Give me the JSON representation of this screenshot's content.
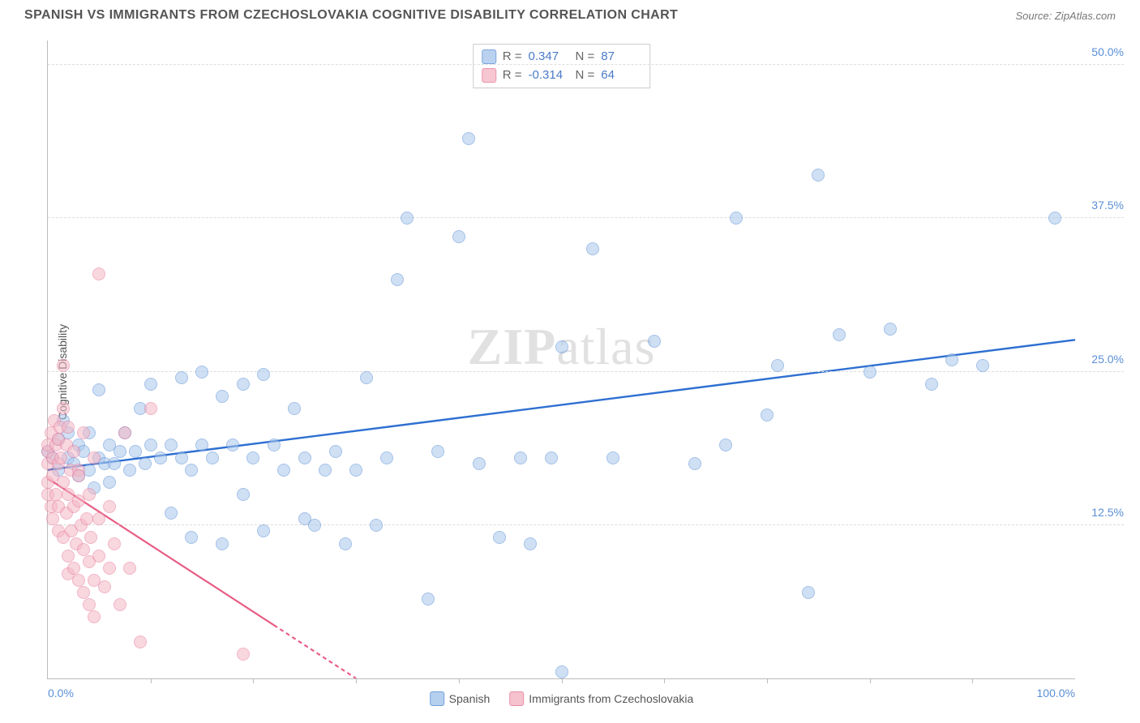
{
  "header": {
    "title": "SPANISH VS IMMIGRANTS FROM CZECHOSLOVAKIA COGNITIVE DISABILITY CORRELATION CHART",
    "source": "Source: ZipAtlas.com"
  },
  "chart": {
    "type": "scatter",
    "ylabel": "Cognitive Disability",
    "watermark_bold": "ZIP",
    "watermark_light": "atlas",
    "background_color": "#ffffff",
    "grid_color": "#dddddd",
    "axis_color": "#bbbbbb",
    "label_color": "#5b8fd6",
    "xlim": [
      0,
      100
    ],
    "ylim": [
      0,
      52
    ],
    "yticks": [
      {
        "v": 12.5,
        "label": "12.5%"
      },
      {
        "v": 25.0,
        "label": "25.0%"
      },
      {
        "v": 37.5,
        "label": "37.5%"
      },
      {
        "v": 50.0,
        "label": "50.0%"
      }
    ],
    "xticks_minor": [
      10,
      20,
      30,
      40,
      50,
      60,
      70,
      80,
      90
    ],
    "xtick_labels": [
      {
        "v": 0,
        "label": "0.0%"
      },
      {
        "v": 100,
        "label": "100.0%"
      }
    ],
    "marker_radius": 8,
    "marker_border_width": 1.2,
    "series": [
      {
        "name": "Spanish",
        "fill": "#a9c7ec",
        "fill_opacity": 0.55,
        "stroke": "#5b8fd6",
        "trend_color": "#2e6fd1",
        "trend_width": 2.4,
        "trend": {
          "x1": 0,
          "y1": 17.0,
          "x2": 100,
          "y2": 27.6,
          "dash_after_x": null
        },
        "stats": {
          "R": "0.347",
          "N": "87"
        },
        "points": [
          [
            0,
            18.5
          ],
          [
            0.5,
            18.0
          ],
          [
            1,
            19.5
          ],
          [
            1,
            17.0
          ],
          [
            1.5,
            21.0
          ],
          [
            2,
            18.0
          ],
          [
            2,
            20.0
          ],
          [
            2.5,
            17.5
          ],
          [
            3,
            19.0
          ],
          [
            3,
            16.5
          ],
          [
            3.5,
            18.5
          ],
          [
            4,
            20.0
          ],
          [
            4,
            17.0
          ],
          [
            4.5,
            15.5
          ],
          [
            5,
            18.0
          ],
          [
            5,
            23.5
          ],
          [
            5.5,
            17.5
          ],
          [
            6,
            19.0
          ],
          [
            6,
            16.0
          ],
          [
            6.5,
            17.5
          ],
          [
            7,
            18.5
          ],
          [
            7.5,
            20.0
          ],
          [
            8,
            17.0
          ],
          [
            8.5,
            18.5
          ],
          [
            9,
            22.0
          ],
          [
            9.5,
            17.5
          ],
          [
            10,
            19.0
          ],
          [
            10,
            24.0
          ],
          [
            11,
            18.0
          ],
          [
            12,
            19.0
          ],
          [
            12,
            13.5
          ],
          [
            13,
            18.0
          ],
          [
            13,
            24.5
          ],
          [
            14,
            17.0
          ],
          [
            14,
            11.5
          ],
          [
            15,
            25.0
          ],
          [
            15,
            19.0
          ],
          [
            16,
            18.0
          ],
          [
            17,
            23.0
          ],
          [
            17,
            11.0
          ],
          [
            18,
            19.0
          ],
          [
            19,
            24.0
          ],
          [
            19,
            15.0
          ],
          [
            20,
            18.0
          ],
          [
            21,
            24.8
          ],
          [
            21,
            12.0
          ],
          [
            22,
            19.0
          ],
          [
            23,
            17.0
          ],
          [
            24,
            22.0
          ],
          [
            25,
            18.0
          ],
          [
            25,
            13.0
          ],
          [
            26,
            12.5
          ],
          [
            27,
            17.0
          ],
          [
            28,
            18.5
          ],
          [
            29,
            11.0
          ],
          [
            30,
            17.0
          ],
          [
            31,
            24.5
          ],
          [
            32,
            12.5
          ],
          [
            33,
            18.0
          ],
          [
            34,
            32.5
          ],
          [
            35,
            37.5
          ],
          [
            37,
            6.5
          ],
          [
            38,
            18.5
          ],
          [
            40,
            36.0
          ],
          [
            41,
            44.0
          ],
          [
            42,
            17.5
          ],
          [
            44,
            11.5
          ],
          [
            46,
            18.0
          ],
          [
            47,
            11.0
          ],
          [
            49,
            18.0
          ],
          [
            50,
            27.0
          ],
          [
            50,
            0.5
          ],
          [
            53,
            35.0
          ],
          [
            55,
            18.0
          ],
          [
            59,
            27.5
          ],
          [
            63,
            17.5
          ],
          [
            66,
            19.0
          ],
          [
            67,
            37.5
          ],
          [
            70,
            21.5
          ],
          [
            71,
            25.5
          ],
          [
            74,
            7.0
          ],
          [
            75,
            41.0
          ],
          [
            77,
            28.0
          ],
          [
            80,
            25.0
          ],
          [
            82,
            28.5
          ],
          [
            86,
            24.0
          ],
          [
            88,
            26.0
          ],
          [
            91,
            25.5
          ],
          [
            98,
            37.5
          ]
        ]
      },
      {
        "name": "Immigrants from Czechoslovakia",
        "fill": "#f4b8c6",
        "fill_opacity": 0.55,
        "stroke": "#e87a9a",
        "trend_color": "#e85d85",
        "trend_width": 2.2,
        "trend": {
          "x1": 0,
          "y1": 16.3,
          "x2": 30,
          "y2": 0.0,
          "dash_after_x": 22
        },
        "stats": {
          "R": "-0.314",
          "N": "64"
        },
        "points": [
          [
            0,
            17.5
          ],
          [
            0,
            18.5
          ],
          [
            0,
            16.0
          ],
          [
            0,
            15.0
          ],
          [
            0,
            19.0
          ],
          [
            0.3,
            20.0
          ],
          [
            0.3,
            14.0
          ],
          [
            0.5,
            18.0
          ],
          [
            0.5,
            16.5
          ],
          [
            0.5,
            13.0
          ],
          [
            0.6,
            21.0
          ],
          [
            0.8,
            19.0
          ],
          [
            0.8,
            15.0
          ],
          [
            1,
            17.5
          ],
          [
            1,
            19.5
          ],
          [
            1,
            14.0
          ],
          [
            1,
            12.0
          ],
          [
            1.2,
            20.5
          ],
          [
            1.3,
            18.0
          ],
          [
            1.5,
            11.5
          ],
          [
            1.5,
            16.0
          ],
          [
            1.5,
            22.0
          ],
          [
            1.5,
            25.5
          ],
          [
            1.8,
            19.0
          ],
          [
            1.8,
            13.5
          ],
          [
            2,
            20.5
          ],
          [
            2,
            15.0
          ],
          [
            2,
            10.0
          ],
          [
            2,
            8.5
          ],
          [
            2.2,
            17.0
          ],
          [
            2.3,
            12.0
          ],
          [
            2.5,
            18.5
          ],
          [
            2.5,
            14.0
          ],
          [
            2.5,
            9.0
          ],
          [
            2.8,
            11.0
          ],
          [
            3,
            14.5
          ],
          [
            3,
            17.0
          ],
          [
            3,
            8.0
          ],
          [
            3,
            16.5
          ],
          [
            3.2,
            12.5
          ],
          [
            3.5,
            20.0
          ],
          [
            3.5,
            10.5
          ],
          [
            3.5,
            7.0
          ],
          [
            3.8,
            13.0
          ],
          [
            4,
            15.0
          ],
          [
            4,
            9.5
          ],
          [
            4,
            6.0
          ],
          [
            4.2,
            11.5
          ],
          [
            4.5,
            18.0
          ],
          [
            4.5,
            8.0
          ],
          [
            4.5,
            5.0
          ],
          [
            5,
            13.0
          ],
          [
            5,
            10.0
          ],
          [
            5,
            33.0
          ],
          [
            5.5,
            7.5
          ],
          [
            6,
            9.0
          ],
          [
            6,
            14.0
          ],
          [
            6.5,
            11.0
          ],
          [
            7,
            6.0
          ],
          [
            7.5,
            20.0
          ],
          [
            8,
            9.0
          ],
          [
            9,
            3.0
          ],
          [
            10,
            22.0
          ],
          [
            19,
            2.0
          ]
        ]
      }
    ],
    "stats_box": {
      "R_label": "R =",
      "N_label": "N ="
    },
    "bottom_legend": {
      "items": [
        "Spanish",
        "Immigrants from Czechoslovakia"
      ]
    }
  }
}
